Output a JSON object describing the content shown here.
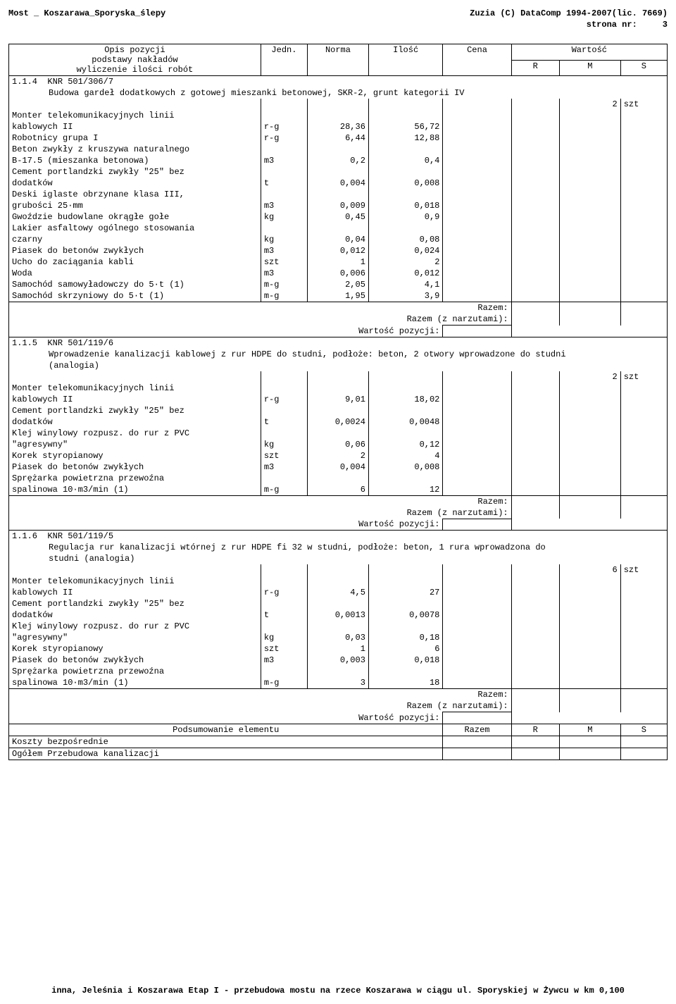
{
  "header": {
    "left": "Most _ Koszarawa_Sporyska_ślepy",
    "right": "Zuzia (C) DataComp 1994-2007(lic. 7669)",
    "page_label": "strona nr:",
    "page_number": "3"
  },
  "columns": {
    "opis1": "Opis pozycji",
    "opis2": "podstawy nakładów",
    "opis3": "wyliczenie ilości robót",
    "jedn": "Jedn.",
    "norma": "Norma",
    "ilosc": "Ilość",
    "cena": "Cena",
    "wartosc": "Wartość",
    "r": "R",
    "m": "M",
    "s": "S"
  },
  "sec114": {
    "code": "1.1.4",
    "knr": "KNR 501/306/7",
    "desc": "Budowa gardeł dodatkowych z gotowej mieszanki betonowej, SKR-2, grunt kategorii IV",
    "qty": "2",
    "unit": "szt",
    "rows": {
      "r0": {
        "label": "Monter telekomunikacyjnych linii",
        "jedn": "",
        "norma": "",
        "ilosc": ""
      },
      "r1": {
        "label": "kablowych II",
        "jedn": "r-g",
        "norma": "28,36",
        "ilosc": "56,72"
      },
      "r2": {
        "label": "Robotnicy grupa I",
        "jedn": "r-g",
        "norma": "6,44",
        "ilosc": "12,88"
      },
      "r3": {
        "label": "Beton zwykły z kruszywa naturalnego",
        "jedn": "",
        "norma": "",
        "ilosc": ""
      },
      "r4": {
        "label": "B-17.5 (mieszanka betonowa)",
        "jedn": "m3",
        "norma": "0,2",
        "ilosc": "0,4"
      },
      "r5": {
        "label": "Cement portlandzki zwykły \"25\" bez",
        "jedn": "",
        "norma": "",
        "ilosc": ""
      },
      "r6": {
        "label": "dodatków",
        "jedn": "t",
        "norma": "0,004",
        "ilosc": "0,008"
      },
      "r7": {
        "label": "Deski iglaste obrzynane klasa III,",
        "jedn": "",
        "norma": "",
        "ilosc": ""
      },
      "r8": {
        "label": "grubości 25·mm",
        "jedn": "m3",
        "norma": "0,009",
        "ilosc": "0,018"
      },
      "r9": {
        "label": "Gwoździe budowlane okrągłe gołe",
        "jedn": "kg",
        "norma": "0,45",
        "ilosc": "0,9"
      },
      "r10": {
        "label": "Lakier asfaltowy ogólnego stosowania",
        "jedn": "",
        "norma": "",
        "ilosc": ""
      },
      "r11": {
        "label": "czarny",
        "jedn": "kg",
        "norma": "0,04",
        "ilosc": "0,08"
      },
      "r12": {
        "label": "Piasek do betonów zwykłych",
        "jedn": "m3",
        "norma": "0,012",
        "ilosc": "0,024"
      },
      "r13": {
        "label": "Ucho do zaciągania kabli",
        "jedn": "szt",
        "norma": "1",
        "ilosc": "2"
      },
      "r14": {
        "label": "Woda",
        "jedn": "m3",
        "norma": "0,006",
        "ilosc": "0,012"
      },
      "r15": {
        "label": "Samochód samowyładowczy do 5·t (1)",
        "jedn": "m-g",
        "norma": "2,05",
        "ilosc": "4,1"
      },
      "r16": {
        "label": "Samochód skrzyniowy do 5·t (1)",
        "jedn": "m-g",
        "norma": "1,95",
        "ilosc": "3,9"
      }
    }
  },
  "sec115": {
    "code": "1.1.5",
    "knr": "KNR 501/119/6",
    "desc1": "Wprowadzenie kanalizacji kablowej z rur HDPE do studni, podłoże: beton, 2 otwory wprowadzone do studni",
    "desc2": "(analogia)",
    "qty": "2",
    "unit": "szt",
    "rows": {
      "r0": {
        "label": "Monter telekomunikacyjnych linii",
        "jedn": "",
        "norma": "",
        "ilosc": ""
      },
      "r1": {
        "label": "kablowych II",
        "jedn": "r-g",
        "norma": "9,01",
        "ilosc": "18,02"
      },
      "r2": {
        "label": "Cement portlandzki zwykły \"25\" bez",
        "jedn": "",
        "norma": "",
        "ilosc": ""
      },
      "r3": {
        "label": "dodatków",
        "jedn": "t",
        "norma": "0,0024",
        "ilosc": "0,0048"
      },
      "r4": {
        "label": "Klej winylowy rozpusz. do rur z PVC",
        "jedn": "",
        "norma": "",
        "ilosc": ""
      },
      "r5": {
        "label": "\"agresywny\"",
        "jedn": "kg",
        "norma": "0,06",
        "ilosc": "0,12"
      },
      "r6": {
        "label": "Korek styropianowy",
        "jedn": "szt",
        "norma": "2",
        "ilosc": "4"
      },
      "r7": {
        "label": "Piasek do betonów zwykłych",
        "jedn": "m3",
        "norma": "0,004",
        "ilosc": "0,008"
      },
      "r8": {
        "label": "Sprężarka powietrzna przewoźna",
        "jedn": "",
        "norma": "",
        "ilosc": ""
      },
      "r9": {
        "label": "spalinowa 10·m3/min (1)",
        "jedn": "m-g",
        "norma": "6",
        "ilosc": "12"
      }
    }
  },
  "sec116": {
    "code": "1.1.6",
    "knr": "KNR 501/119/5",
    "desc1": "Regulacja rur kanalizacji wtórnej z rur HDPE fi 32  w studni, podłoże: beton, 1 rura wprowadzona do",
    "desc2": "studni (analogia)",
    "qty": "6",
    "unit": "szt",
    "rows": {
      "r0": {
        "label": "Monter telekomunikacyjnych linii",
        "jedn": "",
        "norma": "",
        "ilosc": ""
      },
      "r1": {
        "label": "kablowych II",
        "jedn": "r-g",
        "norma": "4,5",
        "ilosc": "27"
      },
      "r2": {
        "label": "Cement portlandzki zwykły \"25\" bez",
        "jedn": "",
        "norma": "",
        "ilosc": ""
      },
      "r3": {
        "label": "dodatków",
        "jedn": "t",
        "norma": "0,0013",
        "ilosc": "0,0078"
      },
      "r4": {
        "label": "Klej winylowy rozpusz. do rur z PVC",
        "jedn": "",
        "norma": "",
        "ilosc": ""
      },
      "r5": {
        "label": "\"agresywny\"",
        "jedn": "kg",
        "norma": "0,03",
        "ilosc": "0,18"
      },
      "r6": {
        "label": "Korek styropianowy",
        "jedn": "szt",
        "norma": "1",
        "ilosc": "6"
      },
      "r7": {
        "label": "Piasek do betonów zwykłych",
        "jedn": "m3",
        "norma": "0,003",
        "ilosc": "0,018"
      },
      "r8": {
        "label": "Sprężarka powietrzna przewoźna",
        "jedn": "",
        "norma": "",
        "ilosc": ""
      },
      "r9": {
        "label": "spalinowa 10·m3/min (1)",
        "jedn": "m-g",
        "norma": "3",
        "ilosc": "18"
      }
    }
  },
  "sums": {
    "razem": "Razem:",
    "razem_narzut": "Razem (z narzutami):",
    "wartosc_poz": "Wartość pozycji:"
  },
  "summary": {
    "title": "Podsumowanie elementu",
    "razem": "Razem",
    "r": "R",
    "m": "M",
    "s": "S",
    "row1": "Koszty bezpośrednie",
    "row2": "Ogółem Przebudowa kanalizacji"
  },
  "footer": "inna, Jeleśnia i Koszarawa Etap I - przebudowa mostu na rzece Koszarawa w ciągu ul. Sporyskiej w Żywcu w km 0,100"
}
